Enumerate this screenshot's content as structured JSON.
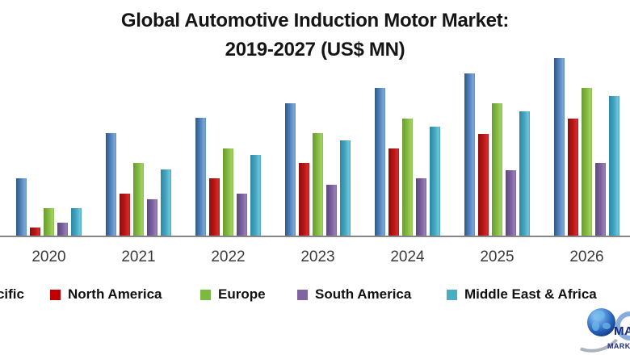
{
  "title": {
    "line1": "Global Automotive Induction Motor Market:",
    "line2": "2019-2027 (US$ MN)"
  },
  "chart_data": {
    "type": "bar",
    "title": "Global Automotive Induction Motor Market: 2019-2027 (US$ MN)",
    "categories": [
      "2020",
      "2021",
      "2022",
      "2023",
      "2024",
      "2025",
      "2026"
    ],
    "series": [
      {
        "name": "Asia Pacific",
        "color": "#4f81bd",
        "values": [
          72,
          128,
          147,
          165,
          184,
          202,
          221
        ]
      },
      {
        "name": "North America",
        "color": "#c00000",
        "values": [
          11,
          53,
          72,
          91,
          109,
          127,
          146
        ]
      },
      {
        "name": "Europe",
        "color": "#7cb940",
        "values": [
          35,
          91,
          109,
          128,
          146,
          165,
          184
        ]
      },
      {
        "name": "South America",
        "color": "#8064a2",
        "values": [
          17,
          46,
          53,
          64,
          72,
          82,
          91
        ]
      },
      {
        "name": "Middle East & Africa",
        "color": "#4bacc6",
        "values": [
          35,
          83,
          101,
          119,
          136,
          155,
          174
        ]
      }
    ],
    "unit": "relative bar height in pixels; value axis is cropped out of the visible image",
    "xlabel": "",
    "ylabel": "",
    "grid": false,
    "legend_position": "bottom",
    "notes": "Title range is 2019-2027 but the 2019 group, the value axis and part of the first legend label are cropped off the left edge; 2027 is cropped off the right."
  },
  "legend": {
    "items": [
      {
        "label": "Asia Pacific",
        "color": "#4f81bd",
        "clipped": true,
        "visible_fragment": "cific"
      },
      {
        "label": "North America",
        "color": "#c00000",
        "clipped": false
      },
      {
        "label": "Europe",
        "color": "#7cb940",
        "clipped": false
      },
      {
        "label": "South America",
        "color": "#8064a2",
        "clipped": false
      },
      {
        "label": "Middle East & Africa",
        "color": "#4bacc6",
        "clipped": false
      }
    ]
  },
  "logo": {
    "text_top": "MAX",
    "text_bottom": "MARK",
    "description": "globe-with-swoosh logo, partially cut off at right edge"
  },
  "colors": {
    "axis_line": "#868686",
    "x_label": "#3a3a3a",
    "title_text": "#151515",
    "background": "#ffffff"
  }
}
